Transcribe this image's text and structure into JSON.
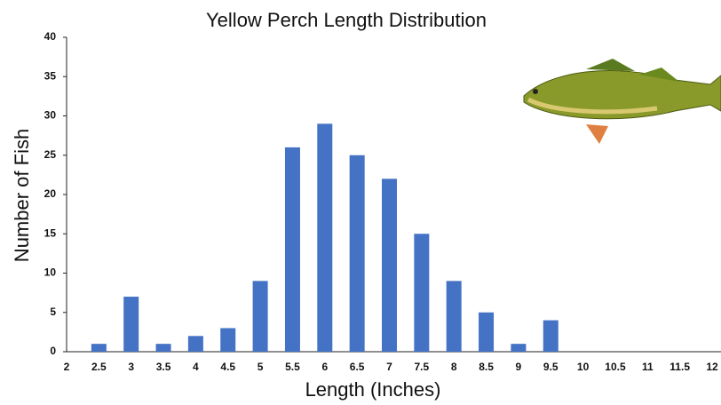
{
  "chart_data": {
    "type": "bar",
    "title": "Yellow Perch Length Distribution",
    "x_label": "Length (Inches)",
    "y_label": "Number of Fish",
    "categories": [
      "2",
      "2.5",
      "3",
      "3.5",
      "4",
      "4.5",
      "5",
      "5.5",
      "6",
      "6.5",
      "7",
      "7.5",
      "8",
      "8.5",
      "9",
      "9.5",
      "10",
      "10.5",
      "11",
      "11.5",
      "12"
    ],
    "values": [
      0,
      1,
      7,
      1,
      2,
      3,
      9,
      26,
      29,
      25,
      22,
      15,
      9,
      5,
      1,
      4,
      0,
      0,
      0,
      0,
      0
    ],
    "color": "#4472c4",
    "ylim": [
      0,
      40
    ],
    "yticks": [
      0,
      5,
      10,
      15,
      20,
      25,
      30,
      35,
      40
    ],
    "grid": false
  }
}
